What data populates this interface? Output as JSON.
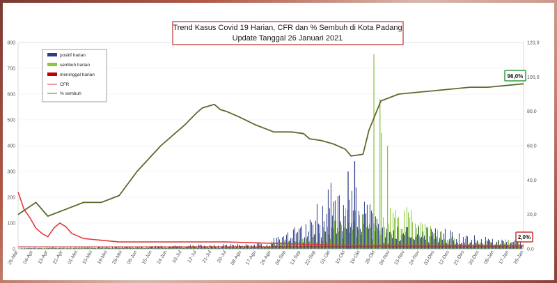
{
  "chart_data": {
    "type": "bar",
    "title": "Trend Kasus Covid 19 Harian, CFR dan % Sembuh di Kota Padang",
    "subtitle": "Update Tanggal 26 Januari 2021",
    "left_axis": {
      "ylim": [
        0,
        800
      ],
      "ticks": [
        "0",
        "100",
        "200",
        "300",
        "400",
        "500",
        "600",
        "700",
        "800"
      ]
    },
    "right_axis": {
      "ylim": [
        0,
        120
      ],
      "ticks": [
        "0,0",
        "20,0",
        "40,0",
        "60,0",
        "80,0",
        "100,0",
        "120,0"
      ]
    },
    "x_ticks": [
      "26-Mar",
      "04-Apr",
      "13-Apr",
      "22-Apr",
      "01-Mei",
      "10-Mei",
      "19-Mei",
      "28-Mei",
      "06-Jun",
      "15-Jun",
      "24-Jun",
      "03-Jul",
      "12-Jul",
      "21-Jul",
      "30-Jul",
      "08-Agu",
      "17-Agu",
      "26-Agu",
      "04-Sep",
      "13-Sep",
      "22-Sep",
      "01-Okt",
      "10-Okt",
      "19-Okt",
      "28-Okt",
      "06-Nov",
      "15-Nov",
      "24-Nov",
      "03-Des",
      "12-Des",
      "21-Des",
      "30-Des",
      "08-Jan",
      "17-Jan",
      "26-Jan"
    ],
    "legend": [
      "positif harian",
      "sembuh harian",
      "meninggal harian",
      "CFR",
      "% sembuh"
    ],
    "legend_placement": "top-left",
    "colors": {
      "positif": "#2e3e86",
      "sembuh": "#8dc63f",
      "meninggal": "#c00000",
      "cfr": "#e23a3a",
      "pct_sembuh": "#5a6b2b",
      "badge_pct": "#2e9e3e",
      "badge_cfr": "#d03030"
    },
    "series": [
      {
        "name": "% sembuh",
        "axis": "right",
        "points": [
          [
            0,
            20
          ],
          [
            3,
            27
          ],
          [
            5,
            19
          ],
          [
            8,
            23
          ],
          [
            11,
            27
          ],
          [
            14,
            27
          ],
          [
            17,
            31
          ],
          [
            20,
            45
          ],
          [
            24,
            60
          ],
          [
            28,
            72
          ],
          [
            30,
            79
          ],
          [
            31,
            82
          ],
          [
            33,
            84
          ],
          [
            34,
            81
          ],
          [
            35,
            80
          ],
          [
            37,
            77
          ],
          [
            40,
            72
          ],
          [
            43,
            68
          ],
          [
            46,
            68
          ],
          [
            48,
            67
          ],
          [
            49,
            64
          ],
          [
            51,
            63
          ],
          [
            53,
            61
          ],
          [
            55,
            58
          ],
          [
            56,
            54
          ],
          [
            58,
            55
          ],
          [
            59,
            69
          ],
          [
            61,
            86
          ],
          [
            64,
            90
          ],
          [
            67,
            91
          ],
          [
            70,
            92
          ],
          [
            73,
            93
          ],
          [
            76,
            94
          ],
          [
            79,
            94
          ],
          [
            82,
            95
          ],
          [
            85,
            96
          ]
        ]
      },
      {
        "name": "CFR",
        "axis": "right",
        "points": [
          [
            0,
            33
          ],
          [
            1,
            23
          ],
          [
            2,
            18
          ],
          [
            3,
            12
          ],
          [
            4,
            9
          ],
          [
            5,
            7
          ],
          [
            6,
            12
          ],
          [
            7,
            15
          ],
          [
            8,
            13
          ],
          [
            9,
            9
          ],
          [
            11,
            6
          ],
          [
            14,
            5
          ],
          [
            17,
            4
          ],
          [
            25,
            4
          ],
          [
            35,
            4
          ],
          [
            45,
            3
          ],
          [
            55,
            2
          ],
          [
            65,
            2
          ],
          [
            75,
            2
          ],
          [
            85,
            2
          ]
        ]
      }
    ],
    "annotations": [
      "96,0%",
      "2,0%"
    ]
  }
}
